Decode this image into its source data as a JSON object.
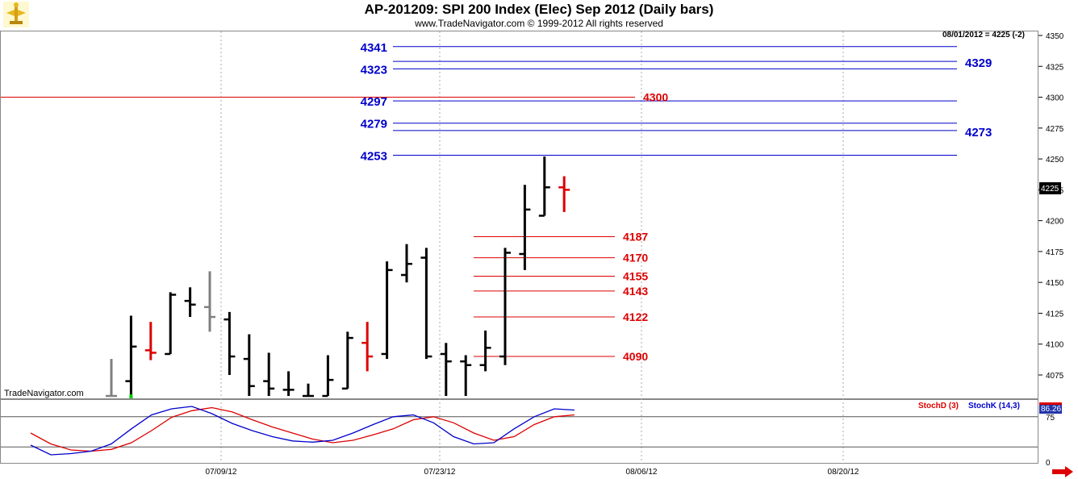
{
  "header": {
    "title": "AP-201209:  SPI 200 Index (Elec) Sep 2012  (Daily bars)",
    "copyright": "www.TradeNavigator.com © 1999-2012 All rights reserved",
    "last_value": "08/01/2012 = 4225 (-2)",
    "current_price_label": "4225",
    "watermark": "TradeNavigator.com"
  },
  "colors": {
    "blue_level": "#0000cc",
    "red_level": "#dd0000",
    "bar_black": "#000000",
    "bar_red": "#dd0000",
    "bar_gray": "#808080",
    "grid": "#aaaaaa",
    "stoch_d": "#dd0000",
    "stoch_k": "#0000cc"
  },
  "chart_data": [
    {
      "type": "ohlc",
      "y_axis_ticks": [
        "4075",
        "4100",
        "4125",
        "4150",
        "4175",
        "4200",
        "4225",
        "4250",
        "4275",
        "4300",
        "4325",
        "4350"
      ],
      "ylim": [
        4058,
        4355
      ],
      "x_tick_labels": [
        "07/09/12",
        "07/23/12",
        "08/06/12",
        "08/20/12"
      ],
      "blue_levels": [
        {
          "value": 4341,
          "label": "4341",
          "side": "left"
        },
        {
          "value": 4329,
          "label": "4329",
          "side": "right"
        },
        {
          "value": 4323,
          "label": "4323",
          "side": "left"
        },
        {
          "value": 4297,
          "label": "4297",
          "side": "left"
        },
        {
          "value": 4279,
          "label": "4279",
          "side": "left"
        },
        {
          "value": 4273,
          "label": "4273",
          "side": "right"
        },
        {
          "value": 4253,
          "label": "4253",
          "side": "left"
        }
      ],
      "red_levels": [
        {
          "value": 4300,
          "label": "4300",
          "full": true
        },
        {
          "value": 4187,
          "label": "4187"
        },
        {
          "value": 4170,
          "label": "4170"
        },
        {
          "value": 4155,
          "label": "4155"
        },
        {
          "value": 4143,
          "label": "4143"
        },
        {
          "value": 4122,
          "label": "4122"
        },
        {
          "value": 4090,
          "label": "4090"
        }
      ],
      "bars": [
        {
          "o": 4058,
          "h": 4088,
          "l": 4058,
          "c": 4058,
          "color": "gray"
        },
        {
          "o": 4070,
          "h": 4123,
          "l": 4058,
          "c": 4098,
          "color": "black"
        },
        {
          "o": 4095,
          "h": 4118,
          "l": 4087,
          "c": 4093,
          "color": "red"
        },
        {
          "o": 4092,
          "h": 4142,
          "l": 4092,
          "c": 4140,
          "color": "black"
        },
        {
          "o": 4135,
          "h": 4146,
          "l": 4122,
          "c": 4132,
          "color": "black"
        },
        {
          "o": 4130,
          "h": 4159,
          "l": 4110,
          "c": 4122,
          "color": "gray"
        },
        {
          "o": 4120,
          "h": 4126,
          "l": 4075,
          "c": 4090,
          "color": "black"
        },
        {
          "o": 4088,
          "h": 4108,
          "l": 4058,
          "c": 4066,
          "color": "black"
        },
        {
          "o": 4070,
          "h": 4093,
          "l": 4058,
          "c": 4064,
          "color": "black"
        },
        {
          "o": 4063,
          "h": 4078,
          "l": 4058,
          "c": 4063,
          "color": "black"
        },
        {
          "o": 4058,
          "h": 4068,
          "l": 4058,
          "c": 4058,
          "color": "black"
        },
        {
          "o": 4058,
          "h": 4091,
          "l": 4058,
          "c": 4071,
          "color": "black"
        },
        {
          "o": 4064,
          "h": 4110,
          "l": 4064,
          "c": 4105,
          "color": "black"
        },
        {
          "o": 4101,
          "h": 4118,
          "l": 4078,
          "c": 4090,
          "color": "red"
        },
        {
          "o": 4092,
          "h": 4167,
          "l": 4088,
          "c": 4160,
          "color": "black"
        },
        {
          "o": 4156,
          "h": 4181,
          "l": 4150,
          "c": 4165,
          "color": "black"
        },
        {
          "o": 4170,
          "h": 4178,
          "l": 4088,
          "c": 4090,
          "color": "black"
        },
        {
          "o": 4092,
          "h": 4101,
          "l": 4058,
          "c": 4086,
          "color": "black"
        },
        {
          "o": 4086,
          "h": 4091,
          "l": 4058,
          "c": 4083,
          "color": "black"
        },
        {
          "o": 4083,
          "h": 4111,
          "l": 4078,
          "c": 4097,
          "color": "black"
        },
        {
          "o": 4090,
          "h": 4178,
          "l": 4083,
          "c": 4174,
          "color": "black"
        },
        {
          "o": 4173,
          "h": 4229,
          "l": 4160,
          "c": 4209,
          "color": "black"
        },
        {
          "o": 4204,
          "h": 4252,
          "l": 4204,
          "c": 4227,
          "color": "black"
        },
        {
          "o": 4227,
          "h": 4236,
          "l": 4207,
          "c": 4225,
          "color": "red"
        }
      ]
    },
    {
      "type": "line",
      "legend": [
        "StochD (3)",
        "StochK (14,3)"
      ],
      "y_axis_ticks": [
        "0",
        "75"
      ],
      "current_value_label": "86.26",
      "reference_levels": [
        75,
        25
      ],
      "ylim": [
        0,
        100
      ],
      "series": [
        {
          "name": "StochD (3)",
          "values": [
            48,
            30,
            20,
            18,
            21,
            32,
            52,
            74,
            85,
            90,
            83,
            70,
            58,
            48,
            38,
            32,
            36,
            45,
            55,
            70,
            75,
            65,
            48,
            36,
            42,
            62,
            75,
            78
          ]
        },
        {
          "name": "StochK (14,3)",
          "values": [
            28,
            12,
            14,
            18,
            30,
            55,
            78,
            88,
            92,
            80,
            64,
            52,
            42,
            35,
            33,
            36,
            48,
            62,
            75,
            78,
            65,
            42,
            30,
            32,
            55,
            75,
            88,
            86
          ]
        }
      ]
    }
  ]
}
